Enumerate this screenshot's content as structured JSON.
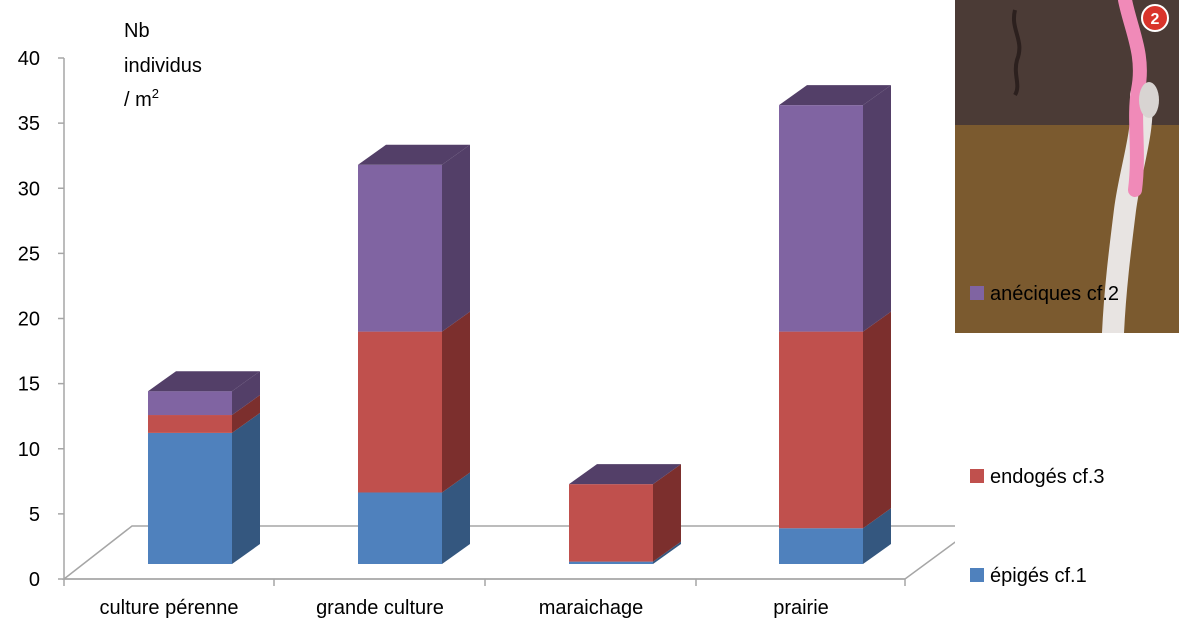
{
  "chart_data": {
    "type": "bar",
    "stacked": true,
    "three_d": true,
    "categories": [
      "culture pérenne",
      "grande culture",
      "maraichage",
      "prairie"
    ],
    "series": [
      {
        "name": "épigés cf.1",
        "color": "#4f81bd",
        "side_color": "#34577f",
        "values": [
          11.0,
          6.0,
          0.2,
          3.0
        ]
      },
      {
        "name": "endogés cf.3",
        "color": "#c0504d",
        "side_color": "#7c2f2d",
        "values": [
          1.5,
          13.5,
          6.5,
          16.5
        ]
      },
      {
        "name": "anéciques cf.2",
        "color": "#8064a2",
        "side_color": "#533f68",
        "values": [
          2.0,
          14.0,
          0.0,
          19.0
        ]
      }
    ],
    "ylim": [
      0,
      40
    ],
    "yticks": [
      0,
      5,
      10,
      15,
      20,
      25,
      30,
      35,
      40
    ],
    "ylabel_lines": [
      "Nb",
      "individus",
      "/ m"
    ],
    "ylabel_sup": "2",
    "grid": false,
    "legend_position": "right"
  },
  "photo": {
    "marker_label": "2",
    "colors": {
      "upper_soil": "#4a3a35",
      "lower_soil": "#7a5a2e",
      "worm": "#f08ab8",
      "burrow": "#e8e4e2",
      "marker": "#d9342b"
    }
  }
}
